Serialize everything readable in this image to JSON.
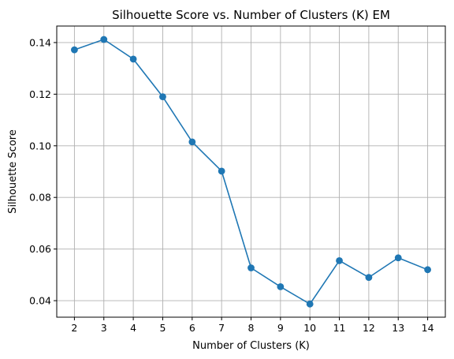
{
  "chart_data": {
    "type": "line",
    "title": "Silhouette Score vs. Number of Clusters (K) EM",
    "xlabel": "Number of Clusters (K)",
    "ylabel": "Silhouette Score",
    "x": [
      2,
      3,
      4,
      5,
      6,
      7,
      8,
      9,
      10,
      11,
      12,
      13,
      14
    ],
    "y": [
      0.1372,
      0.1412,
      0.1336,
      0.119,
      0.1015,
      0.0902,
      0.0527,
      0.0454,
      0.0387,
      0.0555,
      0.049,
      0.0566,
      0.052
    ],
    "xlim": [
      1.4,
      14.6
    ],
    "ylim": [
      0.0336,
      0.1464
    ],
    "yticks": [
      0.04,
      0.06,
      0.08,
      0.1,
      0.12,
      0.14
    ],
    "ytick_labels": [
      "0.04",
      "0.06",
      "0.08",
      "0.10",
      "0.12",
      "0.14"
    ],
    "xtick_labels": [
      "2",
      "3",
      "4",
      "5",
      "6",
      "7",
      "8",
      "9",
      "10",
      "11",
      "12",
      "13",
      "14"
    ],
    "grid": true,
    "marker": "circle",
    "line_color": "#1f77b4"
  }
}
